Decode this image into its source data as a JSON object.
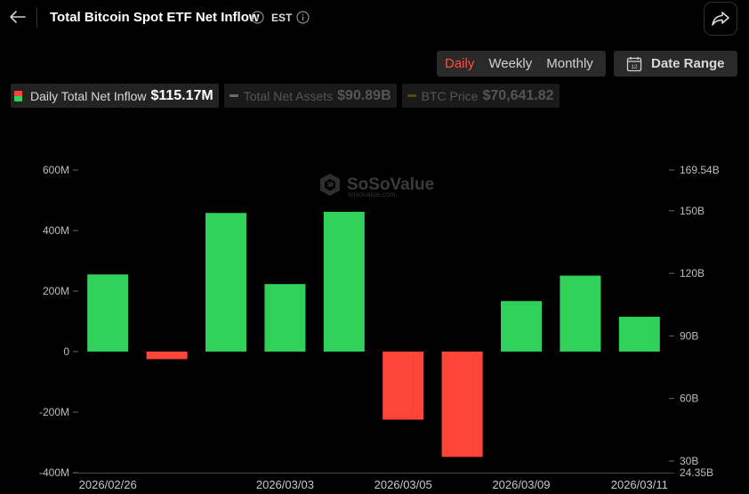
{
  "header": {
    "title": "Total Bitcoin Spot ETF Net Inflow",
    "timezone": "EST"
  },
  "controls": {
    "periods": [
      {
        "label": "Daily",
        "active": true
      },
      {
        "label": "Weekly",
        "active": false
      },
      {
        "label": "Monthly",
        "active": false
      }
    ],
    "date_range_label": "Date Range",
    "calendar_day": "12"
  },
  "legend": [
    {
      "label": "Daily Total Net Inflow",
      "value": "$115.17M",
      "active": true
    },
    {
      "label": "Total Net Assets",
      "value": "$90.89B",
      "active": false
    },
    {
      "label": "BTC Price",
      "value": "$70,641.82",
      "active": false
    }
  ],
  "watermark": {
    "name": "SoSoValue",
    "domain": "sosovalue.com"
  },
  "colors": {
    "positive": "#2fd158",
    "negative": "#ff4438",
    "assets_line": "#6b6b6b",
    "price_line": "#5a4418"
  },
  "chart_data": {
    "type": "bar",
    "title": "Total Bitcoin Spot ETF Net Inflow",
    "series": [
      {
        "name": "Daily Total Net Inflow",
        "unit": "USD millions",
        "values": [
          255,
          -25,
          458,
          223,
          462,
          -225,
          -348,
          167,
          251,
          115.17
        ]
      }
    ],
    "ylim": [
      -400,
      600
    ],
    "yticks": [
      600,
      400,
      200,
      0,
      -200,
      -400
    ],
    "ytick_labels": [
      "600M",
      "400M",
      "200M",
      "0",
      "-200M",
      "-400M"
    ],
    "y2lim": [
      30,
      169.54
    ],
    "y2ticks": [
      169.54,
      150,
      120,
      90,
      60,
      30
    ],
    "y2tick_labels": [
      "169.54B",
      "150B",
      "120B",
      "90B",
      "60B",
      "30B"
    ],
    "y2_extra_label": "24.35B",
    "xtick_labels": [
      {
        "index": 0,
        "label": "2026/02/26"
      },
      {
        "index": 3,
        "label": "2026/03/03"
      },
      {
        "index": 5,
        "label": "2026/03/05"
      },
      {
        "index": 7,
        "label": "2026/03/09"
      },
      {
        "index": 9,
        "label": "2026/03/11"
      }
    ],
    "grid": false,
    "legend_position": "top-left"
  }
}
